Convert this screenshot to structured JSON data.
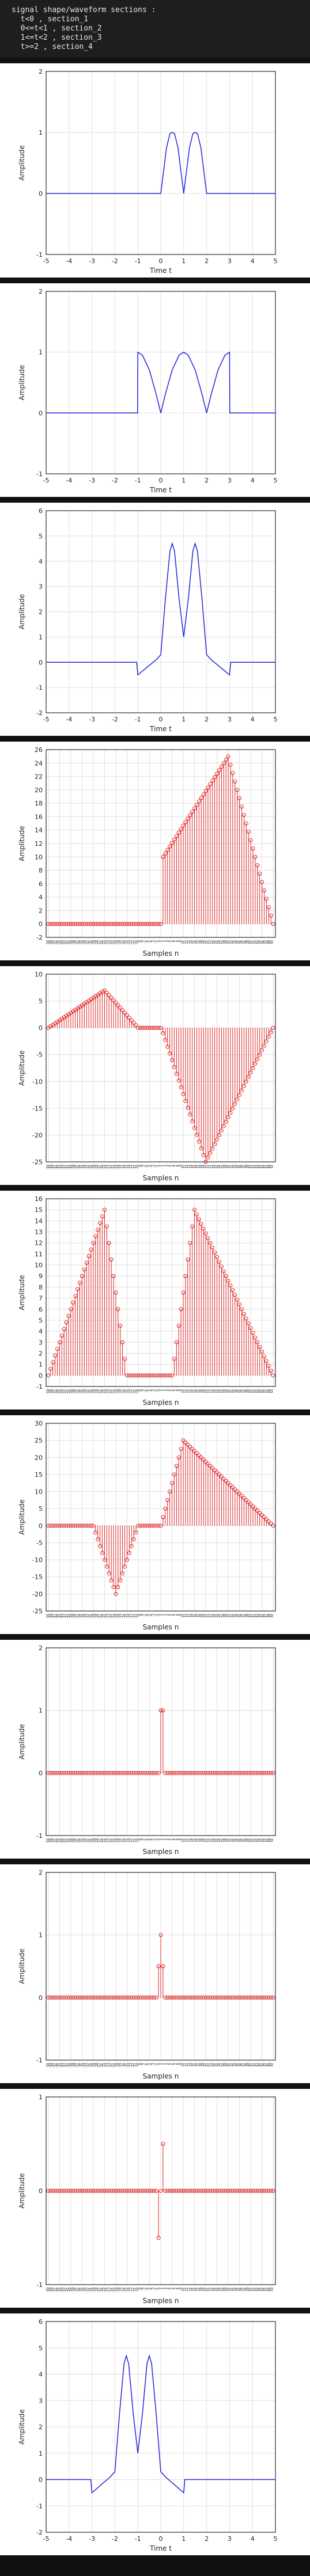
{
  "header": {
    "lines": [
      "signal shape/waveform sections :",
      "  t<0 , section_1",
      "  0<=t<1 , section_2",
      "  1<=t<2 , section_3",
      "  t>=2 , section_4"
    ]
  },
  "colors": {
    "continuous": "#2222dd",
    "stem": "#dd2222",
    "grid": "#e0e0e0",
    "axis": "#000000",
    "background": "#111111",
    "header_bg": "#1e1e1e"
  },
  "chart_data": [
    {
      "type": "line",
      "xlabel": "Time t",
      "ylabel": "Amplitude",
      "xlim": [
        -5,
        5
      ],
      "ylim": [
        -1,
        2
      ],
      "xticks": [
        "-5",
        "-4",
        "-3",
        "-2",
        "-1",
        "0",
        "1",
        "2",
        "3",
        "4",
        "5"
      ],
      "yticks": [
        "-1",
        "0",
        "1",
        "2"
      ],
      "grid": true,
      "x": [
        -5,
        -3,
        -1,
        0,
        0.1,
        0.25,
        0.4,
        0.5,
        0.6,
        0.75,
        0.9,
        1,
        1.1,
        1.25,
        1.4,
        1.5,
        1.6,
        1.75,
        1.9,
        2,
        3,
        5
      ],
      "y": [
        0,
        0,
        0,
        0,
        0.3,
        0.75,
        0.98,
        1,
        0.98,
        0.75,
        0.3,
        0,
        0.3,
        0.75,
        0.98,
        1,
        0.98,
        0.75,
        0.3,
        0,
        0,
        0
      ]
    },
    {
      "type": "line",
      "xlabel": "Time t",
      "ylabel": "Amplitude",
      "xlim": [
        -5,
        5
      ],
      "ylim": [
        -1,
        2
      ],
      "xticks": [
        "-5",
        "-4",
        "-3",
        "-2",
        "-1",
        "0",
        "1",
        "2",
        "3",
        "4",
        "5"
      ],
      "yticks": [
        "-1",
        "0",
        "1",
        "2"
      ],
      "grid": true,
      "x": [
        -5,
        -3,
        -1.01,
        -1,
        -0.8,
        -0.5,
        -0.2,
        0,
        0.2,
        0.5,
        0.8,
        1,
        1.2,
        1.5,
        1.8,
        2,
        2.2,
        2.5,
        2.8,
        3,
        3.01,
        5
      ],
      "y": [
        0,
        0,
        0,
        1,
        0.95,
        0.71,
        0.31,
        0,
        0.31,
        0.71,
        0.95,
        1,
        0.95,
        0.71,
        0.31,
        0,
        0.31,
        0.71,
        0.95,
        1,
        0,
        0
      ]
    },
    {
      "type": "line",
      "xlabel": "Time t",
      "ylabel": "Amplitude",
      "xlim": [
        -5,
        5
      ],
      "ylim": [
        -2,
        6
      ],
      "xticks": [
        "-5",
        "-4",
        "-3",
        "-2",
        "-1",
        "0",
        "1",
        "2",
        "3",
        "4",
        "5"
      ],
      "yticks": [
        "-2",
        "-1",
        "0",
        "1",
        "2",
        "3",
        "4",
        "5",
        "6"
      ],
      "grid": true,
      "x": [
        -5,
        -1.05,
        -1,
        -0.6,
        -0.2,
        0,
        0.2,
        0.4,
        0.5,
        0.6,
        0.8,
        1,
        1.2,
        1.4,
        1.5,
        1.6,
        1.8,
        2,
        2.2,
        2.6,
        3,
        3.05,
        5
      ],
      "y": [
        0,
        0,
        -0.5,
        -0.2,
        0.1,
        0.3,
        2.5,
        4.4,
        4.7,
        4.4,
        2.5,
        1,
        2.5,
        4.4,
        4.7,
        4.4,
        2.5,
        0.3,
        0.1,
        -0.2,
        -0.5,
        0,
        0
      ]
    },
    {
      "type": "stem",
      "xlabel": "Samples n",
      "ylabel": "Amplitude",
      "n_start": -50,
      "n_end": 50,
      "ylim": [
        -2,
        26
      ],
      "grid": true,
      "breakpoints": [
        [
          -50,
          0
        ],
        [
          0,
          0
        ],
        [
          1,
          10
        ],
        [
          30,
          25
        ],
        [
          50,
          0
        ]
      ]
    },
    {
      "type": "stem",
      "xlabel": "Samples n",
      "ylabel": "Amplitude",
      "n_start": -50,
      "n_end": 50,
      "ylim": [
        -25,
        10
      ],
      "grid": true,
      "breakpoints": [
        [
          -50,
          0
        ],
        [
          -25,
          7
        ],
        [
          -10,
          0
        ],
        [
          0,
          0
        ],
        [
          1,
          -1
        ],
        [
          20,
          -25
        ],
        [
          50,
          0
        ]
      ]
    },
    {
      "type": "stem",
      "xlabel": "Samples n",
      "ylabel": "Amplitude",
      "n_start": -50,
      "n_end": 50,
      "ylim": [
        -1,
        16
      ],
      "yticks": [
        "-1",
        "0",
        "1",
        "2",
        "3",
        "4",
        "5",
        "6",
        "7",
        "8",
        "9",
        "10",
        "11",
        "12",
        "13",
        "14",
        "15",
        "16"
      ],
      "grid": true,
      "breakpoints": [
        [
          -50,
          0
        ],
        [
          -25,
          15
        ],
        [
          -15,
          0
        ],
        [
          -5,
          0
        ],
        [
          5,
          0
        ],
        [
          15,
          15
        ],
        [
          50,
          0
        ]
      ]
    },
    {
      "type": "stem",
      "xlabel": "Samples n",
      "ylabel": "Amplitude",
      "n_start": -50,
      "n_end": 50,
      "ylim": [
        -25,
        30
      ],
      "grid": true,
      "breakpoints": [
        [
          -50,
          0
        ],
        [
          -30,
          0
        ],
        [
          -20,
          -20
        ],
        [
          -10,
          0
        ],
        [
          0,
          0
        ],
        [
          10,
          25
        ],
        [
          50,
          0
        ]
      ]
    },
    {
      "type": "stem",
      "xlabel": "Samples n",
      "ylabel": "Amplitude",
      "n_start": -50,
      "n_end": 50,
      "ylim": [
        -1,
        2
      ],
      "yticks": [
        "-1",
        "0",
        "1",
        "2"
      ],
      "grid": true,
      "points": [
        [
          0,
          1
        ],
        [
          1,
          1
        ]
      ]
    },
    {
      "type": "stem",
      "xlabel": "Samples n",
      "ylabel": "Amplitude",
      "n_start": -50,
      "n_end": 50,
      "ylim": [
        -1,
        2
      ],
      "yticks": [
        "-1",
        "0",
        "1",
        "2"
      ],
      "grid": true,
      "points": [
        [
          -1,
          0.5
        ],
        [
          0,
          1
        ],
        [
          1,
          0.5
        ]
      ]
    },
    {
      "type": "stem",
      "xlabel": "Samples n",
      "ylabel": "Amplitude",
      "n_start": -50,
      "n_end": 50,
      "ylim": [
        -1,
        1
      ],
      "yticks": [
        "-1",
        "0",
        "1"
      ],
      "grid": true,
      "points": [
        [
          -1,
          -0.5
        ],
        [
          1,
          0.5
        ]
      ]
    },
    {
      "type": "line",
      "xlabel": "Time t",
      "ylabel": "Amplitude",
      "xlim": [
        -5,
        5
      ],
      "ylim": [
        -2,
        6
      ],
      "xticks": [
        "-5",
        "-4",
        "-3",
        "-2",
        "-1",
        "0",
        "1",
        "2",
        "3",
        "4",
        "5"
      ],
      "yticks": [
        "-2",
        "-1",
        "0",
        "1",
        "2",
        "3",
        "4",
        "5",
        "6"
      ],
      "grid": true,
      "x": [
        -5,
        -3.05,
        -3,
        -2.6,
        -2.2,
        -2,
        -1.8,
        -1.6,
        -1.5,
        -1.4,
        -1.2,
        -1,
        -0.8,
        -0.6,
        -0.5,
        -0.4,
        -0.2,
        0,
        0.2,
        0.6,
        1,
        1.05,
        5
      ],
      "y": [
        0,
        0,
        -0.5,
        -0.2,
        0.1,
        0.3,
        2.5,
        4.4,
        4.7,
        4.4,
        2.5,
        1,
        2.5,
        4.4,
        4.7,
        4.4,
        2.5,
        0.3,
        0.1,
        -0.2,
        -0.5,
        0,
        0
      ]
    }
  ]
}
